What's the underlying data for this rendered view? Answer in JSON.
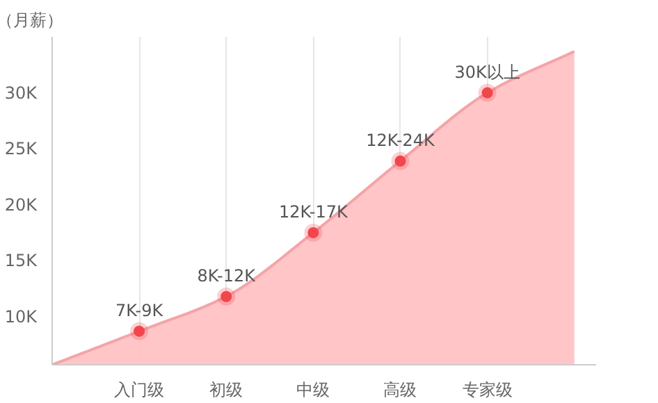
{
  "chart_data": {
    "type": "area",
    "ylabel": "（月薪）",
    "ylim": [
      5.7,
      35
    ],
    "categories": [
      null,
      "入门级",
      "初级",
      "中级",
      "高级",
      "专家级",
      null
    ],
    "yticks": [
      {
        "value": 10,
        "label": "10K"
      },
      {
        "value": 15,
        "label": "15K"
      },
      {
        "value": 20,
        "label": "20K"
      },
      {
        "value": 25,
        "label": "25K"
      },
      {
        "value": 30,
        "label": "30K"
      }
    ],
    "grid": "x",
    "series": [
      {
        "color": "#ffc2c4",
        "values": [
          5.7,
          8.7,
          11.8,
          17.5,
          23.9,
          30.0,
          33.7
        ]
      },
      {
        "type": "scatter",
        "color": "#f0464c",
        "marker": "circle",
        "values": [
          null,
          8.7,
          11.8,
          17.5,
          23.9,
          30.0,
          null
        ],
        "value_labels": [
          null,
          "7K-9K",
          "8K-12K",
          "12K-17K",
          "12K-24K",
          "30K以上",
          null
        ]
      }
    ]
  }
}
